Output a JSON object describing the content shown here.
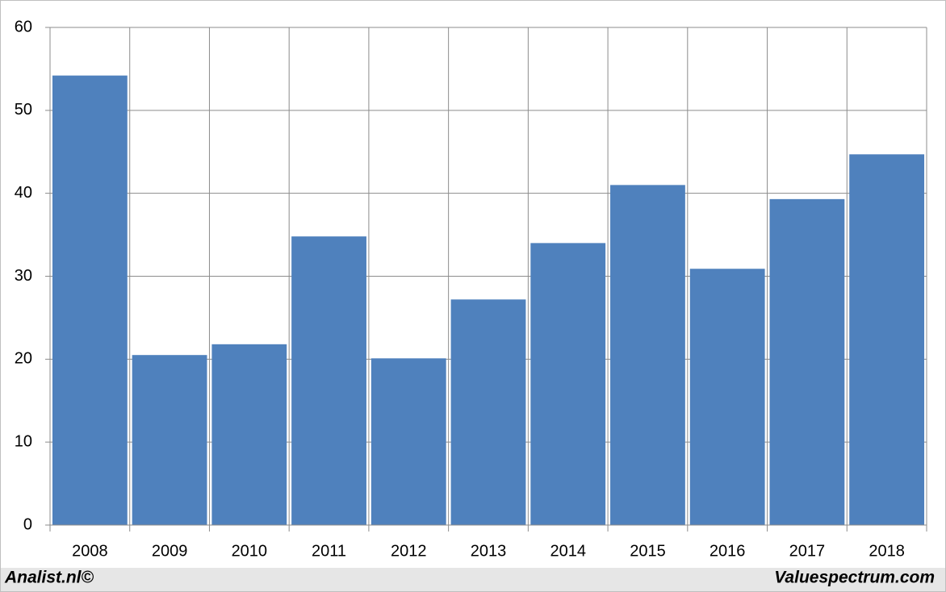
{
  "chart_data": {
    "type": "bar",
    "categories": [
      "2008",
      "2009",
      "2010",
      "2011",
      "2012",
      "2013",
      "2014",
      "2015",
      "2016",
      "2017",
      "2018"
    ],
    "values": [
      54.2,
      20.5,
      21.8,
      34.8,
      20.1,
      27.2,
      34.0,
      41.0,
      30.9,
      39.3,
      44.7
    ],
    "color": "#4f81bd",
    "ylim": [
      0,
      60
    ],
    "yticks": [
      0,
      10,
      20,
      30,
      40,
      50,
      60
    ],
    "grid": true
  },
  "footer": {
    "left": "Analist.nl©",
    "right": "Valuespectrum.com"
  }
}
